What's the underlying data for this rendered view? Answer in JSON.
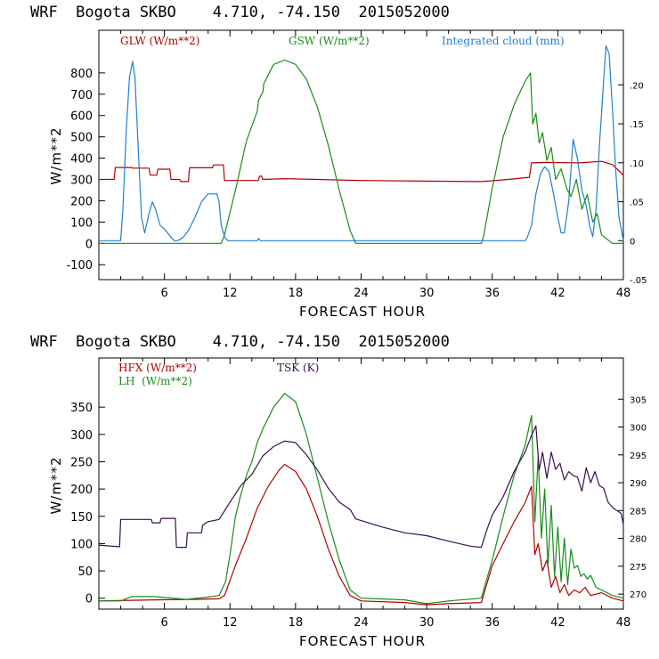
{
  "chart_data": [
    {
      "type": "line",
      "title": "WRF  Bogota SKBO    4.710, -74.150  2015052000",
      "xlabel": "FORECAST HOUR",
      "ylabel": "W/m**2",
      "xlim": [
        0,
        48
      ],
      "ylim": [
        -170,
        1000
      ],
      "y2lim": [
        -0.05,
        0.27
      ],
      "xticks": [
        6,
        12,
        18,
        24,
        30,
        36,
        42,
        48
      ],
      "xtick_labels": [
        "6",
        "12",
        "18",
        "24",
        "30",
        "36",
        "42",
        "48"
      ],
      "yticks": [
        -100,
        0,
        100,
        200,
        300,
        400,
        500,
        600,
        700,
        800
      ],
      "ytick_labels": [
        "-100",
        "0",
        "100",
        "200",
        "300",
        "400",
        "500",
        "600",
        "700",
        "800"
      ],
      "y2ticks": [
        -0.05,
        0,
        0.05,
        0.1,
        0.15,
        0.2
      ],
      "y2tick_labels": [
        "-.05",
        "0",
        ".05",
        ".10",
        ".15",
        ".20"
      ],
      "grid": false,
      "legend_placement": "top",
      "series": [
        {
          "name": "GLW (W/m**2)",
          "color": "#b30000",
          "axis": "left",
          "x": [
            0,
            1.4,
            1.5,
            3.0,
            3.1,
            4.6,
            4.7,
            5.3,
            5.4,
            6.5,
            6.6,
            7.4,
            7.5,
            8.2,
            8.3,
            10.4,
            10.5,
            11.4,
            11.5,
            14.6,
            14.7,
            14.9,
            15.0,
            17,
            20,
            24,
            30,
            35,
            37,
            39.4,
            39.6,
            41,
            44,
            46,
            47,
            48
          ],
          "values": [
            300,
            300,
            356,
            356,
            353,
            353,
            320,
            320,
            348,
            348,
            300,
            300,
            290,
            290,
            355,
            355,
            368,
            368,
            295,
            295,
            315,
            315,
            300,
            304,
            300,
            295,
            292,
            290,
            298,
            310,
            378,
            380,
            378,
            385,
            370,
            320
          ]
        },
        {
          "name": "GSW (W/m**2)",
          "color": "#198c19",
          "axis": "left",
          "x": [
            0,
            11.2,
            11.5,
            12.5,
            13.5,
            14.5,
            14.6,
            15.0,
            15.1,
            16,
            17,
            18,
            19,
            20,
            21,
            22,
            23,
            23.5,
            35,
            35.2,
            36,
            37,
            38,
            39,
            39.5,
            39.7,
            40.0,
            40.3,
            40.6,
            41.0,
            41.4,
            41.8,
            42.3,
            42.8,
            43.2,
            43.7,
            44.2,
            44.7,
            45.2,
            45.6,
            46,
            47,
            48
          ],
          "values": [
            0,
            0,
            40,
            250,
            480,
            620,
            670,
            710,
            750,
            840,
            860,
            840,
            770,
            640,
            460,
            250,
            60,
            0,
            0,
            30,
            260,
            500,
            650,
            760,
            800,
            560,
            610,
            470,
            520,
            390,
            450,
            300,
            350,
            260,
            220,
            300,
            160,
            230,
            100,
            140,
            40,
            0,
            0
          ]
        },
        {
          "name": "Integrated cloud (mm)",
          "color": "#1f7fd1",
          "axis": "right",
          "x": [
            0,
            2.0,
            2.2,
            2.5,
            2.8,
            3.1,
            3.3,
            3.6,
            3.9,
            4.2,
            4.6,
            4.9,
            5.2,
            5.6,
            6.0,
            6.4,
            6.9,
            7.2,
            7.7,
            8.2,
            8.8,
            9.4,
            10.0,
            10.4,
            10.8,
            11.0,
            11.2,
            11.5,
            11.8,
            12,
            14.5,
            14.6,
            14.8,
            15,
            39.0,
            39.2,
            39.6,
            40.0,
            40.4,
            40.8,
            41.2,
            41.6,
            42.0,
            42.3,
            42.6,
            43.0,
            43.4,
            43.8,
            44.2,
            44.6,
            44.9,
            45.2,
            45.5,
            45.8,
            46.1,
            46.4,
            46.7,
            47.0,
            47.3,
            47.6,
            48
          ],
          "values": [
            0,
            0,
            0.04,
            0.14,
            0.21,
            0.23,
            0.21,
            0.12,
            0.03,
            0.01,
            0.035,
            0.05,
            0.04,
            0.02,
            0.015,
            0.008,
            0,
            0,
            0.004,
            0.013,
            0.03,
            0.05,
            0.06,
            0.06,
            0.06,
            0.05,
            0.02,
            0.005,
            0,
            0,
            0,
            0.003,
            0,
            0,
            0,
            0.004,
            0.02,
            0.06,
            0.085,
            0.095,
            0.088,
            0.06,
            0.03,
            0.01,
            0.01,
            0.05,
            0.13,
            0.105,
            0.065,
            0.045,
            0.02,
            0.005,
            0.04,
            0.12,
            0.185,
            0.25,
            0.24,
            0.17,
            0.09,
            0.03,
            0
          ]
        }
      ]
    },
    {
      "type": "line",
      "title": "WRF  Bogota SKBO    4.710, -74.150  2015052000",
      "xlabel": "FORECAST HOUR",
      "ylabel": "W/m**2",
      "xlim": [
        0,
        48
      ],
      "ylim": [
        -20,
        440
      ],
      "y2lim": [
        267.3,
        312.4
      ],
      "xticks": [
        6,
        12,
        18,
        24,
        30,
        36,
        42,
        48
      ],
      "xtick_labels": [
        "6",
        "12",
        "18",
        "24",
        "30",
        "36",
        "42",
        "48"
      ],
      "yticks": [
        0,
        50,
        100,
        150,
        200,
        250,
        300,
        350
      ],
      "ytick_labels": [
        "0",
        "50",
        "100",
        "150",
        "200",
        "250",
        "300",
        "350"
      ],
      "y2ticks": [
        270,
        275,
        280,
        285,
        290,
        295,
        300,
        305
      ],
      "y2tick_labels": [
        "270",
        "275",
        "280",
        "285",
        "290",
        "295",
        "300",
        "305"
      ],
      "grid": false,
      "legend_placement": "top",
      "series": [
        {
          "name": "HFX (W/m**2)",
          "color": "#b30000",
          "axis": "left",
          "x": [
            0,
            5,
            9,
            11,
            11.5,
            12.5,
            13.5,
            14.5,
            15.5,
            16.5,
            17,
            18,
            19,
            20,
            21,
            22,
            23,
            24,
            28,
            30,
            32,
            35,
            36,
            37,
            38,
            39,
            39.6,
            39.9,
            40.2,
            40.6,
            41,
            41.4,
            41.8,
            42.2,
            42.6,
            43,
            43.5,
            44,
            44.5,
            45,
            46,
            47,
            48
          ],
          "values": [
            -5,
            -3,
            -2,
            -1,
            5,
            60,
            110,
            165,
            205,
            235,
            245,
            232,
            200,
            150,
            90,
            40,
            5,
            -5,
            -8,
            -12,
            -10,
            -8,
            60,
            100,
            140,
            175,
            205,
            80,
            100,
            50,
            70,
            20,
            40,
            10,
            25,
            5,
            15,
            10,
            20,
            5,
            10,
            0,
            -5
          ]
        },
        {
          "name": "LH (W/m**2)",
          "color": "#198c19",
          "axis": "left",
          "x": [
            0,
            2,
            3,
            5,
            8,
            10,
            11,
            11.6,
            12,
            12.5,
            13,
            13.5,
            14,
            14.5,
            15,
            15.5,
            16,
            17,
            18,
            19,
            20,
            21,
            22,
            23,
            24,
            28,
            30,
            32,
            35,
            36,
            37,
            38,
            39,
            39.6,
            39.9,
            40.2,
            40.5,
            40.8,
            41.1,
            41.4,
            41.7,
            42.0,
            42.3,
            42.6,
            42.9,
            43.2,
            43.5,
            43.8,
            44.1,
            44.4,
            44.7,
            45.0,
            45.5,
            46,
            47,
            48
          ],
          "values": [
            -5,
            -5,
            3,
            3,
            -2,
            2,
            5,
            30,
            80,
            150,
            190,
            225,
            250,
            285,
            310,
            330,
            350,
            375,
            360,
            300,
            220,
            140,
            70,
            15,
            0,
            -3,
            -10,
            -5,
            0,
            70,
            150,
            225,
            280,
            335,
            140,
            260,
            110,
            200,
            60,
            170,
            40,
            130,
            30,
            110,
            25,
            90,
            55,
            60,
            40,
            45,
            35,
            42,
            20,
            15,
            5,
            0
          ]
        },
        {
          "name": "TSK (K)",
          "color": "#3a0f4e",
          "axis": "right",
          "x": [
            0,
            1.9,
            2.0,
            4.8,
            4.9,
            5.6,
            5.7,
            7.0,
            7.1,
            8.0,
            8.1,
            9.4,
            9.5,
            10.0,
            11,
            12,
            13,
            14,
            15,
            16,
            17,
            18,
            19,
            20,
            21,
            22,
            23,
            23.5,
            24,
            26,
            28,
            30,
            32,
            34,
            35,
            35.5,
            36,
            37,
            38,
            39,
            39.6,
            40.0,
            40.3,
            40.6,
            41.0,
            41.4,
            41.8,
            42.2,
            42.6,
            43.0,
            43.4,
            43.8,
            44.2,
            44.6,
            45.0,
            45.4,
            45.8,
            46.2,
            46.6,
            47.0,
            47.4,
            47.8,
            48
          ],
          "values": [
            278.8,
            278.5,
            283.4,
            283.4,
            282.8,
            282.8,
            283.6,
            283.6,
            278.4,
            278.4,
            281.0,
            281.0,
            282.4,
            283.0,
            283.4,
            286.5,
            289.5,
            291.5,
            294.8,
            296.5,
            297.5,
            297.2,
            295.0,
            292.3,
            289.0,
            286.5,
            285.2,
            283.5,
            283.2,
            282.0,
            281.0,
            280.5,
            279.5,
            278.6,
            278.4,
            281.5,
            284.2,
            287.5,
            292.0,
            295.5,
            298.5,
            300.2,
            292.3,
            295.5,
            290.8,
            295.5,
            292.4,
            293.5,
            290.5,
            292.0,
            291.3,
            291.0,
            288.5,
            292.7,
            290.0,
            292.0,
            289.5,
            289.0,
            286.5,
            285.6,
            285.0,
            284.5,
            282.5
          ]
        }
      ]
    }
  ],
  "labels": {
    "legend_top": [
      {
        "text": "GLW (W/m**2)",
        "color": "#b30000"
      },
      {
        "text": "GSW (W/m**2)",
        "color": "#198c19"
      },
      {
        "text": "Integrated cloud (mm)",
        "color": "#1f7fd1"
      }
    ],
    "legend_bottom": [
      {
        "text": "HFX (W/m**2)",
        "color": "#b30000"
      },
      {
        "text": "LH  (W/m**2)",
        "color": "#198c19"
      },
      {
        "text": "TSK (K)",
        "color": "#3a0f4e"
      }
    ]
  }
}
